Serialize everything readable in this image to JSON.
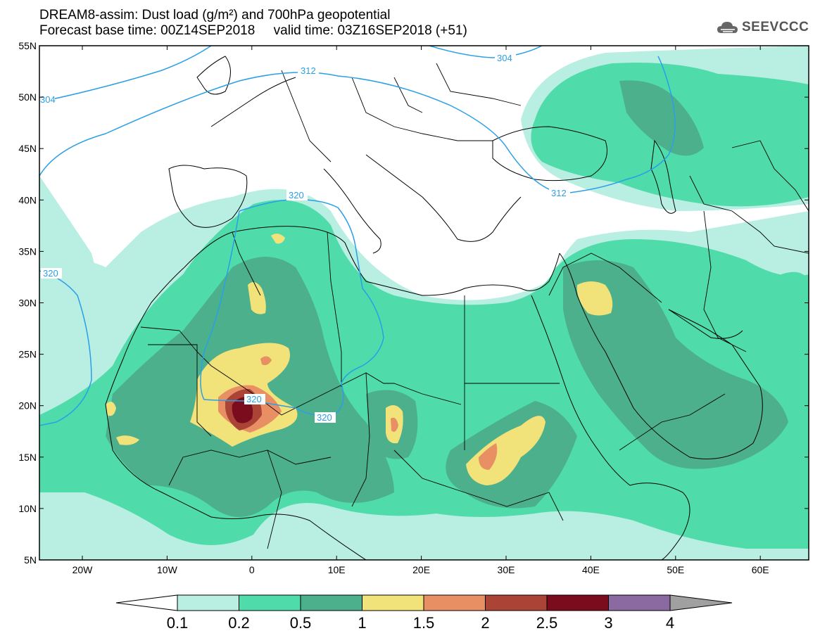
{
  "header": {
    "title_line1": "DREAM8-assim: Dust load (g/m²) and 700hPa geopotential",
    "title_line2": "Forecast base time: 00Z14SEP2018     valid time: 03Z16SEP2018 (+51)"
  },
  "logo": {
    "text": "SEEVCCC",
    "icon": "cloud-icon"
  },
  "map": {
    "lat_labels": [
      "55N",
      "50N",
      "45N",
      "40N",
      "35N",
      "30N",
      "25N",
      "20N",
      "15N",
      "10N",
      "5N"
    ],
    "lon_labels": [
      "20W",
      "10W",
      "0",
      "10E",
      "20E",
      "30E",
      "40E",
      "50E",
      "60E"
    ],
    "contour_labels": [
      "304",
      "312",
      "304",
      "312",
      "320",
      "320",
      "320",
      "320"
    ]
  },
  "colorbar": {
    "ticks": [
      "0.1",
      "0.2",
      "0.5",
      "1",
      "1.5",
      "2",
      "2.5",
      "3",
      "4"
    ],
    "colors": [
      "#ffffff",
      "#b9eee2",
      "#4fdcaa",
      "#4db08c",
      "#f2e27a",
      "#e88f64",
      "#ab4336",
      "#7b0c1e",
      "#8a6aa0",
      "#a0a0a0"
    ]
  },
  "palette": {
    "land": "#ffffff",
    "level1": "#b9eee2",
    "level2": "#4fdcaa",
    "level3": "#4db08c",
    "level4": "#f2e27a",
    "level5": "#e88f64",
    "level6": "#ab4336",
    "level7": "#7b0c1e",
    "contour": "#2a9fe6",
    "border": "#000000"
  }
}
